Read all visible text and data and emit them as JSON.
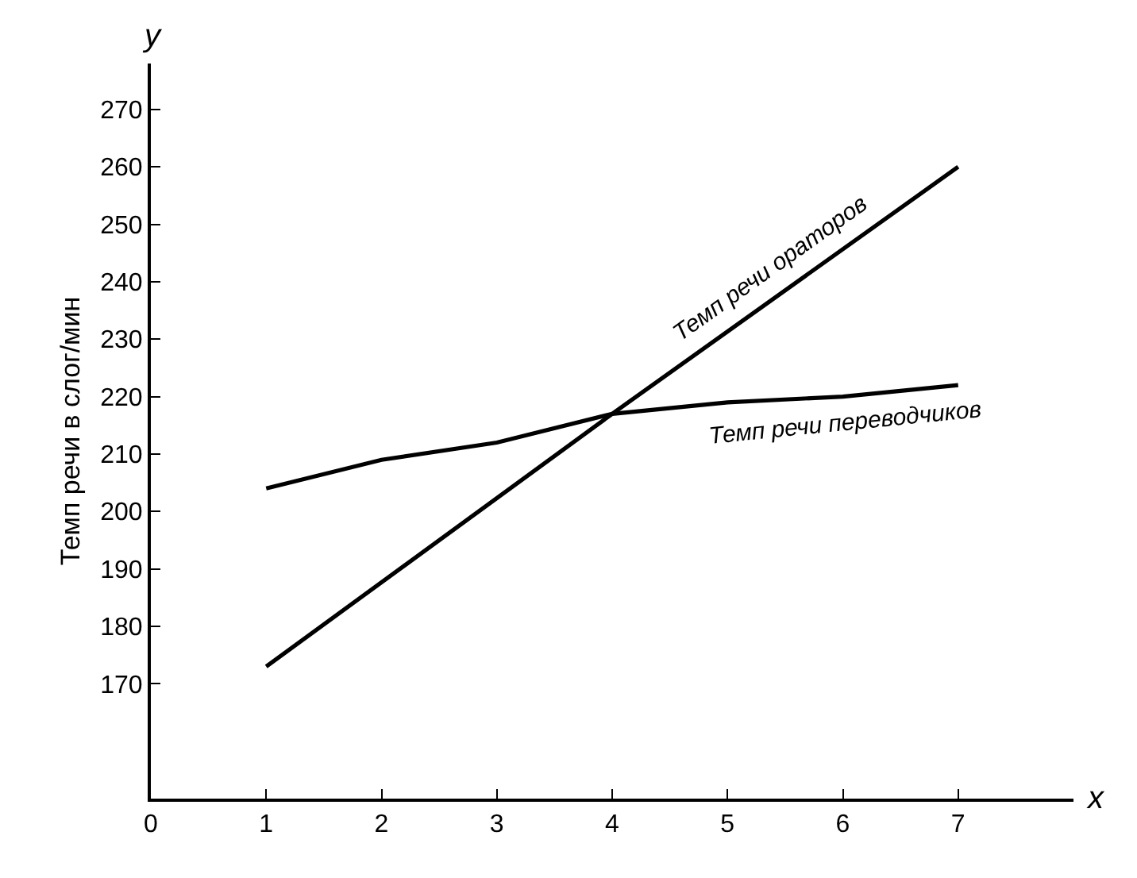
{
  "chart_data": {
    "type": "line",
    "ylabel": "Темп речи в слог/мин",
    "xlabel": "x",
    "annotations": [
      "y"
    ],
    "x": [
      1,
      2,
      3,
      4,
      5,
      6,
      7
    ],
    "series": [
      {
        "name": "Темп речи ораторов",
        "color": "#000000",
        "x": [
          1,
          4,
          7
        ],
        "values": [
          173,
          217,
          260
        ]
      },
      {
        "name": "Темп речи переводчиков",
        "color": "#000000",
        "values": [
          204,
          209,
          212,
          217,
          219,
          220,
          222
        ]
      }
    ],
    "xlim": [
      0,
      8
    ],
    "xticks": [
      0,
      1,
      2,
      3,
      4,
      5,
      6,
      7
    ],
    "ylim": [
      150,
      278
    ],
    "yticks": [
      170,
      180,
      190,
      200,
      210,
      220,
      230,
      240,
      250,
      260,
      270
    ],
    "legend": false,
    "marker": "none",
    "line_style": "solid"
  }
}
